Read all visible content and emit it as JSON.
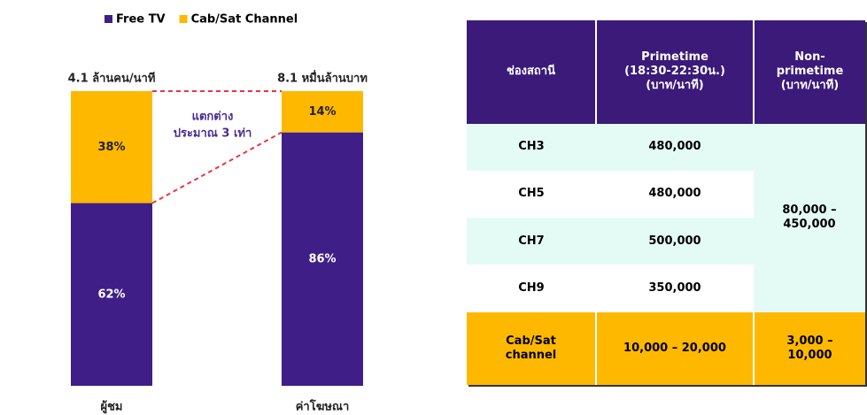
{
  "chart_data": {
    "type": "bar",
    "stacked": true,
    "categories": [
      "ผู้ชม",
      "ค่าโฆษณา"
    ],
    "series": [
      {
        "name": "Free TV",
        "color": "#3f1f87",
        "values": [
          62,
          86
        ],
        "value_labels": [
          "62%",
          "86%"
        ]
      },
      {
        "name": "Cab/Sat Channel",
        "color": "#ffb800",
        "values": [
          38,
          14
        ],
        "value_labels": [
          "38%",
          "14%"
        ]
      }
    ],
    "ylim": [
      0,
      100
    ],
    "totals_labels": [
      "4.1 ล้านคน/นาที",
      "8.1 หมื่นล้านบาท"
    ],
    "annotation": [
      "แตกต่าง",
      "ประมาณ 3 เท่า"
    ]
  },
  "table": {
    "header": [
      [
        "ช่องสถานี"
      ],
      [
        "Primetime",
        "(18:30-22:30น.)",
        "(บาท/นาที)"
      ],
      [
        "Non-",
        "primetime",
        "(บาท/นาที)"
      ]
    ],
    "rows": [
      [
        "CH3",
        "480,000"
      ],
      [
        "CH5",
        "480,000"
      ],
      [
        "CH7",
        "500,000"
      ],
      [
        "CH9",
        "350,000"
      ]
    ],
    "merged": [
      "80,000 –",
      "450,000"
    ],
    "last_row": [
      [
        "Cab/Sat",
        "channel"
      ],
      [
        "10,000 – 20,000"
      ],
      [
        "3,000 –",
        "10,000"
      ]
    ]
  }
}
